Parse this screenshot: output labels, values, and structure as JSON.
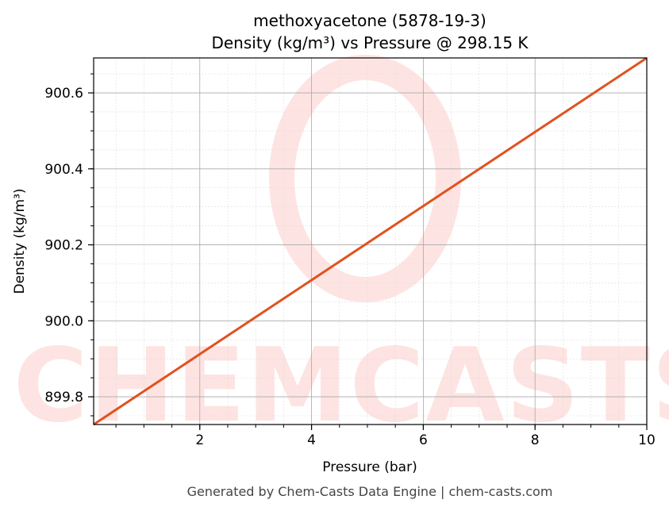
{
  "chart_data": {
    "type": "line",
    "title": "methoxyacetone (5878-19-3)",
    "subtitle": "Density (kg/m³) vs Pressure @ 298.15 K",
    "xlabel": "Pressure (bar)",
    "ylabel": "Density (kg/m³)",
    "xlim": [
      0.1,
      10
    ],
    "ylim": [
      899.727,
      900.692
    ],
    "xticks": [
      2,
      4,
      6,
      8,
      10
    ],
    "xtick_labels": [
      "2",
      "4",
      "6",
      "8",
      "10"
    ],
    "yticks": [
      899.8,
      900.0,
      900.2,
      900.4,
      900.6
    ],
    "ytick_labels": [
      "899.8",
      "900.0",
      "900.2",
      "900.4",
      "900.6"
    ],
    "x_minor_step": 0.5,
    "y_minor_step": 0.05,
    "grid": true,
    "series": [
      {
        "color": "#e0521f",
        "x": [
          0.1,
          10
        ],
        "y": [
          899.727,
          900.692
        ]
      }
    ]
  },
  "watermark": "CHEMCASTS",
  "footer": "Generated by Chem-Casts Data Engine | chem-casts.com"
}
